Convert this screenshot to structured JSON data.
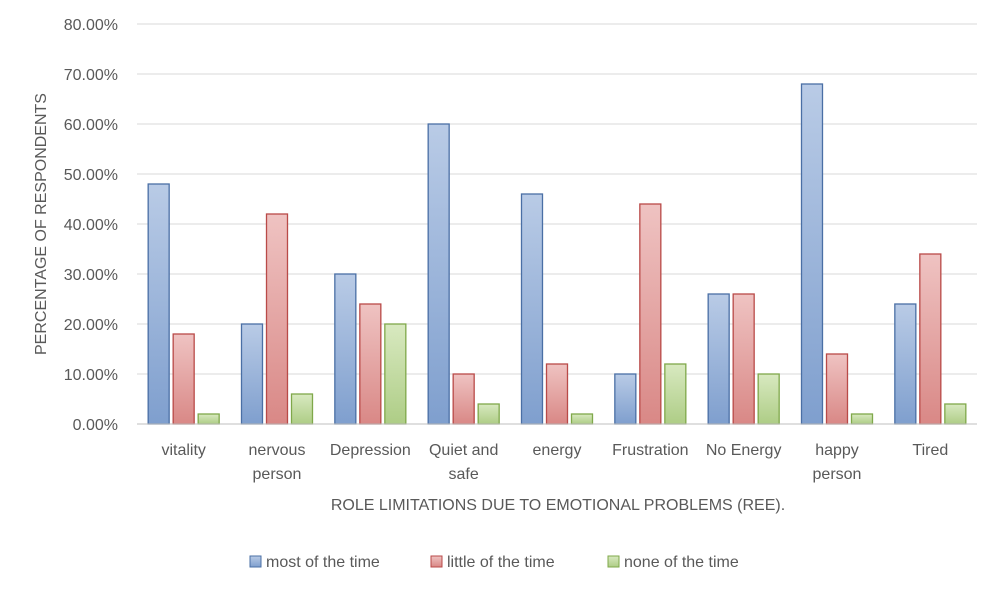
{
  "chart_data": {
    "type": "bar",
    "categories": [
      [
        "vitality"
      ],
      [
        "nervous",
        "person"
      ],
      [
        "Depression"
      ],
      [
        "Quiet and",
        "safe"
      ],
      [
        "energy"
      ],
      [
        "Frustration"
      ],
      [
        "No Energy"
      ],
      [
        "happy",
        "person"
      ],
      [
        "Tired"
      ]
    ],
    "series": [
      {
        "name": "most of the time",
        "values": [
          48,
          20,
          30,
          60,
          46,
          10,
          26,
          68,
          24
        ],
        "fill_top": "#b9cbe6",
        "fill_bottom": "#7f9fce",
        "stroke": "#4a6fa5"
      },
      {
        "name": "little of the time",
        "values": [
          18,
          42,
          24,
          10,
          12,
          44,
          26,
          14,
          34
        ],
        "fill_top": "#efc3c2",
        "fill_bottom": "#d98886",
        "stroke": "#b94a48"
      },
      {
        "name": "none of the time",
        "values": [
          2,
          6,
          20,
          4,
          2,
          12,
          10,
          2,
          4
        ],
        "fill_top": "#d8e9c0",
        "fill_bottom": "#aecd86",
        "stroke": "#7fa84a"
      }
    ],
    "title": "",
    "xlabel": "ROLE LIMITATIONS DUE TO EMOTIONAL PROBLEMS (REE).",
    "ylabel": "PERCENTAGE OF RESPONDENTS",
    "ylim": [
      0,
      80
    ],
    "ytick_step": 10,
    "ytick_labels": [
      "0.00%",
      "10.00%",
      "20.00%",
      "30.00%",
      "40.00%",
      "50.00%",
      "60.00%",
      "70.00%",
      "80.00%"
    ],
    "grid": true,
    "legend_position": "bottom",
    "colors": {
      "grid": "#d9d9d9",
      "text": "#595959"
    }
  }
}
